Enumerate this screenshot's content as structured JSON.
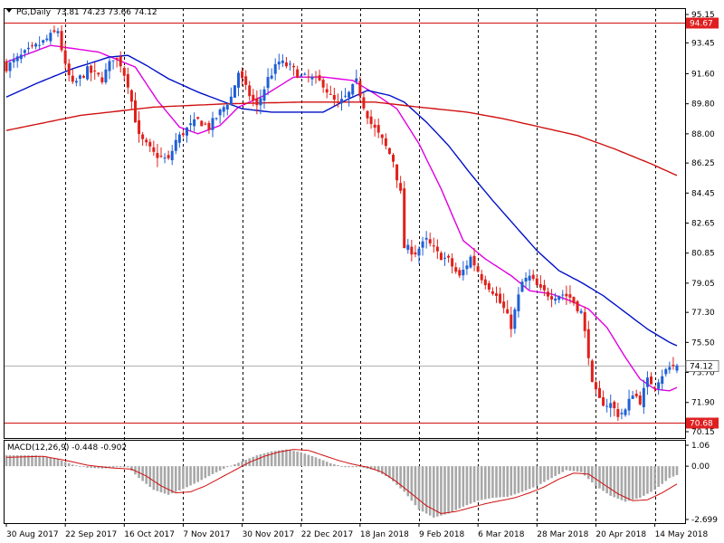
{
  "symbol_header": {
    "symbol": "PG,Daily",
    "ohlc": "73.81 74.23 73.66 74.12"
  },
  "colors": {
    "background": "#ffffff",
    "grid": "#000000",
    "bull_candle": "#1f5fd6",
    "bear_candle": "#e0201a",
    "ma_fast": "#e000e0",
    "ma_mid": "#0010c8",
    "ma_slow": "#d01010",
    "hline": "#d01010",
    "macd_hist": "#a8a8a8",
    "macd_signal": "#d01010",
    "price_label_bg": "#ffffff",
    "level_label_bg": "#e02020"
  },
  "main_axis": {
    "ticks": [
      "95.15",
      "93.45",
      "91.60",
      "89.80",
      "88.00",
      "86.25",
      "84.45",
      "82.65",
      "80.85",
      "79.05",
      "77.30",
      "75.50",
      "73.70",
      "71.90",
      "70.15"
    ],
    "current_price_label": "74.12",
    "level_labels": [
      "94.67",
      "70.68"
    ]
  },
  "macd": {
    "label": "MACD(12,26,9) -0.448 -0.902",
    "ticks": [
      "1.06",
      "0.00",
      "-2.699"
    ]
  },
  "x_axis": {
    "labels": [
      "30 Aug 2017",
      "22 Sep 2017",
      "16 Oct 2017",
      "7 Nov 2017",
      "30 Nov 2017",
      "22 Dec 2017",
      "18 Jan 2018",
      "9 Feb 2018",
      "6 Mar 2018",
      "28 Mar 2018",
      "20 Apr 2018",
      "14 May 2018"
    ]
  },
  "chart_data": {
    "type": "candlestick",
    "instrument": "PG",
    "timeframe": "Daily",
    "last_bar": {
      "open": 73.81,
      "high": 74.23,
      "low": 73.66,
      "close": 74.12
    },
    "price_ylim": [
      70.15,
      95.15
    ],
    "horizontal_levels": [
      94.67,
      70.68
    ],
    "x_labels": [
      "30 Aug 2017",
      "22 Sep 2017",
      "16 Oct 2017",
      "7 Nov 2017",
      "30 Nov 2017",
      "22 Dec 2017",
      "18 Jan 2018",
      "9 Feb 2018",
      "6 Mar 2018",
      "28 Mar 2018",
      "20 Apr 2018",
      "14 May 2018"
    ],
    "x_label_bar_index": [
      0,
      16,
      32,
      48,
      64,
      80,
      96,
      112,
      128,
      144,
      160,
      176
    ],
    "bar_count": 183,
    "close_anchors": [
      [
        0,
        92.0
      ],
      [
        5,
        92.8
      ],
      [
        10,
        93.5
      ],
      [
        14,
        94.2
      ],
      [
        16,
        92.0
      ],
      [
        18,
        90.9
      ],
      [
        22,
        91.8
      ],
      [
        26,
        91.3
      ],
      [
        29,
        92.6
      ],
      [
        31,
        92.2
      ],
      [
        33,
        91.0
      ],
      [
        36,
        87.8
      ],
      [
        40,
        86.8
      ],
      [
        44,
        86.4
      ],
      [
        46,
        87.6
      ],
      [
        49,
        88.3
      ],
      [
        52,
        88.8
      ],
      [
        55,
        88.4
      ],
      [
        58,
        89.3
      ],
      [
        61,
        90.2
      ],
      [
        63,
        91.7
      ],
      [
        65,
        90.7
      ],
      [
        68,
        89.6
      ],
      [
        71,
        91.3
      ],
      [
        74,
        92.3
      ],
      [
        77,
        92.0
      ],
      [
        80,
        91.4
      ],
      [
        83,
        91.3
      ],
      [
        86,
        91.0
      ],
      [
        88,
        90.2
      ],
      [
        90,
        89.7
      ],
      [
        93,
        90.4
      ],
      [
        95,
        91.1
      ],
      [
        97,
        89.7
      ],
      [
        99,
        88.6
      ],
      [
        102,
        87.6
      ],
      [
        105,
        86.4
      ],
      [
        107,
        84.4
      ],
      [
        108,
        81.2
      ],
      [
        111,
        80.9
      ],
      [
        114,
        81.6
      ],
      [
        117,
        80.8
      ],
      [
        120,
        80.4
      ],
      [
        123,
        79.4
      ],
      [
        126,
        80.6
      ],
      [
        129,
        79.4
      ],
      [
        132,
        78.6
      ],
      [
        135,
        77.5
      ],
      [
        137,
        76.5
      ],
      [
        140,
        79.1
      ],
      [
        142,
        79.4
      ],
      [
        145,
        78.6
      ],
      [
        148,
        78.3
      ],
      [
        151,
        78.4
      ],
      [
        153,
        78.2
      ],
      [
        156,
        77.3
      ],
      [
        158,
        74.8
      ],
      [
        159,
        72.9
      ],
      [
        161,
        72.0
      ],
      [
        163,
        71.8
      ],
      [
        164,
        71.8
      ],
      [
        166,
        71.2
      ],
      [
        168,
        71.4
      ],
      [
        170,
        72.5
      ],
      [
        172,
        72.0
      ],
      [
        174,
        73.2
      ],
      [
        176,
        73.0
      ],
      [
        178,
        73.6
      ],
      [
        180,
        74.0
      ],
      [
        182,
        74.12
      ]
    ],
    "moving_averages": [
      {
        "color": "#e000e0",
        "anchors": [
          [
            0,
            92.3
          ],
          [
            12,
            93.3
          ],
          [
            25,
            92.9
          ],
          [
            35,
            92.0
          ],
          [
            41,
            90.0
          ],
          [
            47,
            88.4
          ],
          [
            52,
            88.0
          ],
          [
            58,
            88.5
          ],
          [
            63,
            89.6
          ],
          [
            70,
            90.3
          ],
          [
            78,
            91.4
          ],
          [
            86,
            91.4
          ],
          [
            94,
            91.2
          ],
          [
            100,
            90.4
          ],
          [
            106,
            89.5
          ],
          [
            112,
            87.4
          ],
          [
            118,
            84.7
          ],
          [
            124,
            81.6
          ],
          [
            130,
            80.5
          ],
          [
            137,
            79.5
          ],
          [
            142,
            78.6
          ],
          [
            148,
            78.4
          ],
          [
            153,
            78.0
          ],
          [
            158,
            77.5
          ],
          [
            163,
            76.4
          ],
          [
            168,
            74.6
          ],
          [
            172,
            73.3
          ],
          [
            176,
            72.7
          ],
          [
            180,
            72.6
          ],
          [
            182,
            72.8
          ]
        ]
      },
      {
        "color": "#0010c8",
        "anchors": [
          [
            0,
            90.2
          ],
          [
            8,
            91.0
          ],
          [
            18,
            91.9
          ],
          [
            28,
            92.6
          ],
          [
            33,
            92.7
          ],
          [
            38,
            92.1
          ],
          [
            44,
            91.3
          ],
          [
            52,
            90.5
          ],
          [
            58,
            90.0
          ],
          [
            64,
            89.5
          ],
          [
            72,
            89.3
          ],
          [
            80,
            89.3
          ],
          [
            86,
            89.3
          ],
          [
            92,
            90.0
          ],
          [
            98,
            90.6
          ],
          [
            104,
            90.3
          ],
          [
            108,
            89.9
          ],
          [
            114,
            88.7
          ],
          [
            120,
            87.3
          ],
          [
            126,
            85.6
          ],
          [
            132,
            84.0
          ],
          [
            138,
            82.5
          ],
          [
            144,
            81.0
          ],
          [
            150,
            79.8
          ],
          [
            156,
            79.1
          ],
          [
            162,
            78.3
          ],
          [
            168,
            77.3
          ],
          [
            174,
            76.3
          ],
          [
            180,
            75.5
          ],
          [
            182,
            75.3
          ]
        ]
      },
      {
        "color": "#d01010",
        "anchors": [
          [
            0,
            88.2
          ],
          [
            20,
            89.1
          ],
          [
            40,
            89.6
          ],
          [
            60,
            89.8
          ],
          [
            80,
            89.9
          ],
          [
            100,
            89.9
          ],
          [
            112,
            89.6
          ],
          [
            125,
            89.3
          ],
          [
            135,
            88.9
          ],
          [
            145,
            88.4
          ],
          [
            155,
            87.9
          ],
          [
            165,
            87.1
          ],
          [
            175,
            86.2
          ],
          [
            182,
            85.5
          ]
        ]
      }
    ],
    "macd": {
      "name": "MACD(12,26,9)",
      "main": -0.448,
      "signal": -0.902,
      "ylim": [
        -2.699,
        1.06
      ],
      "hist_anchors": [
        [
          0,
          0.55
        ],
        [
          8,
          0.55
        ],
        [
          14,
          0.35
        ],
        [
          18,
          0.08
        ],
        [
          22,
          -0.08
        ],
        [
          26,
          -0.12
        ],
        [
          30,
          -0.05
        ],
        [
          33,
          -0.05
        ],
        [
          36,
          -0.6
        ],
        [
          40,
          -1.2
        ],
        [
          44,
          -1.45
        ],
        [
          48,
          -1.15
        ],
        [
          52,
          -0.8
        ],
        [
          56,
          -0.4
        ],
        [
          60,
          -0.05
        ],
        [
          64,
          0.25
        ],
        [
          68,
          0.55
        ],
        [
          72,
          0.75
        ],
        [
          76,
          0.85
        ],
        [
          80,
          0.7
        ],
        [
          84,
          0.45
        ],
        [
          88,
          0.15
        ],
        [
          92,
          -0.05
        ],
        [
          96,
          -0.05
        ],
        [
          100,
          -0.2
        ],
        [
          104,
          -0.6
        ],
        [
          108,
          -1.3
        ],
        [
          112,
          -2.2
        ],
        [
          116,
          -2.6
        ],
        [
          120,
          -2.4
        ],
        [
          124,
          -2.05
        ],
        [
          128,
          -1.75
        ],
        [
          132,
          -1.6
        ],
        [
          136,
          -1.55
        ],
        [
          140,
          -1.3
        ],
        [
          144,
          -1.0
        ],
        [
          148,
          -0.6
        ],
        [
          152,
          -0.2
        ],
        [
          156,
          -0.3
        ],
        [
          160,
          -1.0
        ],
        [
          164,
          -1.5
        ],
        [
          168,
          -1.8
        ],
        [
          172,
          -1.6
        ],
        [
          176,
          -1.2
        ],
        [
          180,
          -0.6
        ],
        [
          182,
          -0.45
        ]
      ],
      "signal_anchors": [
        [
          0,
          0.45
        ],
        [
          10,
          0.5
        ],
        [
          16,
          0.3
        ],
        [
          22,
          0.05
        ],
        [
          28,
          -0.08
        ],
        [
          34,
          -0.15
        ],
        [
          38,
          -0.5
        ],
        [
          42,
          -1.0
        ],
        [
          46,
          -1.35
        ],
        [
          50,
          -1.3
        ],
        [
          54,
          -1.0
        ],
        [
          58,
          -0.6
        ],
        [
          62,
          -0.2
        ],
        [
          66,
          0.2
        ],
        [
          70,
          0.5
        ],
        [
          74,
          0.72
        ],
        [
          78,
          0.85
        ],
        [
          82,
          0.8
        ],
        [
          86,
          0.55
        ],
        [
          90,
          0.3
        ],
        [
          94,
          0.1
        ],
        [
          98,
          -0.05
        ],
        [
          102,
          -0.3
        ],
        [
          106,
          -0.8
        ],
        [
          110,
          -1.4
        ],
        [
          114,
          -2.0
        ],
        [
          118,
          -2.4
        ],
        [
          122,
          -2.3
        ],
        [
          126,
          -2.1
        ],
        [
          130,
          -1.9
        ],
        [
          134,
          -1.75
        ],
        [
          138,
          -1.6
        ],
        [
          142,
          -1.35
        ],
        [
          146,
          -1.05
        ],
        [
          150,
          -0.65
        ],
        [
          154,
          -0.35
        ],
        [
          158,
          -0.4
        ],
        [
          162,
          -0.9
        ],
        [
          166,
          -1.4
        ],
        [
          170,
          -1.75
        ],
        [
          174,
          -1.7
        ],
        [
          178,
          -1.35
        ],
        [
          182,
          -0.9
        ]
      ]
    }
  }
}
